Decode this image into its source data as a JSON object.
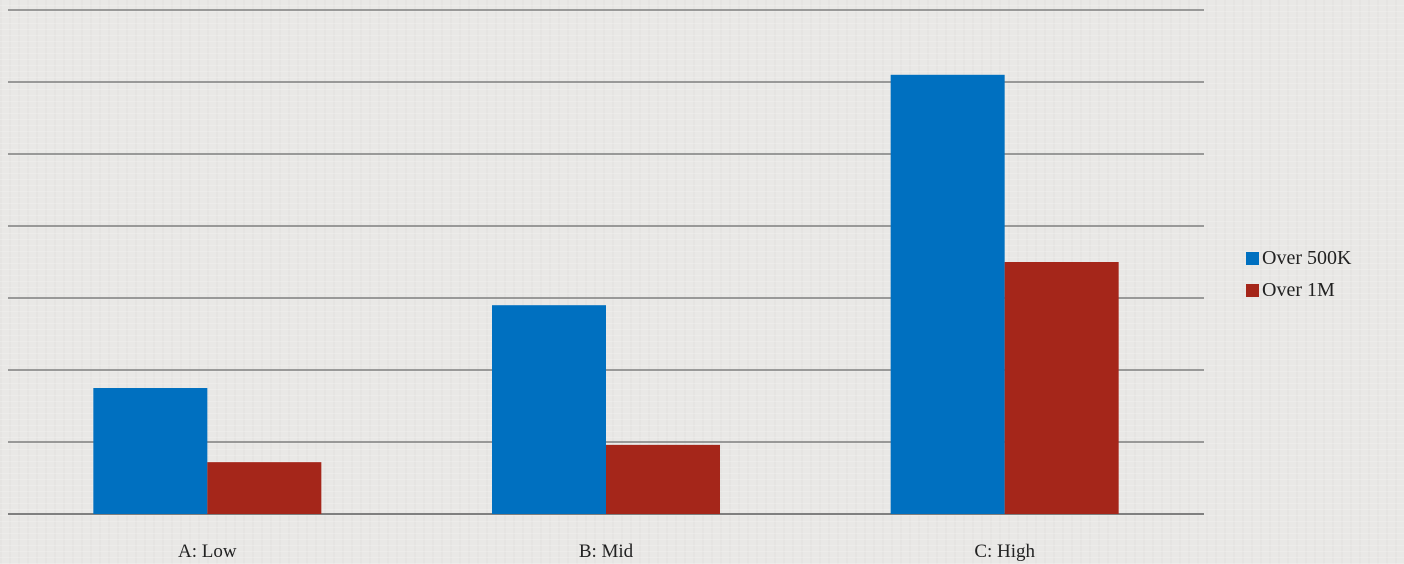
{
  "chart_data": {
    "type": "bar",
    "categories": [
      "A: Low",
      "B: Mid",
      "C: High"
    ],
    "series": [
      {
        "name": "Over 500K",
        "values": [
          1.75,
          2.9,
          6.1
        ],
        "color": "#0070c0"
      },
      {
        "name": "Over 1M",
        "values": [
          0.72,
          0.96,
          3.5
        ],
        "color": "#a5261a"
      }
    ],
    "ylim": [
      0,
      7
    ],
    "grid": true,
    "legend_position": "right",
    "title": "",
    "xlabel": "",
    "ylabel": ""
  }
}
